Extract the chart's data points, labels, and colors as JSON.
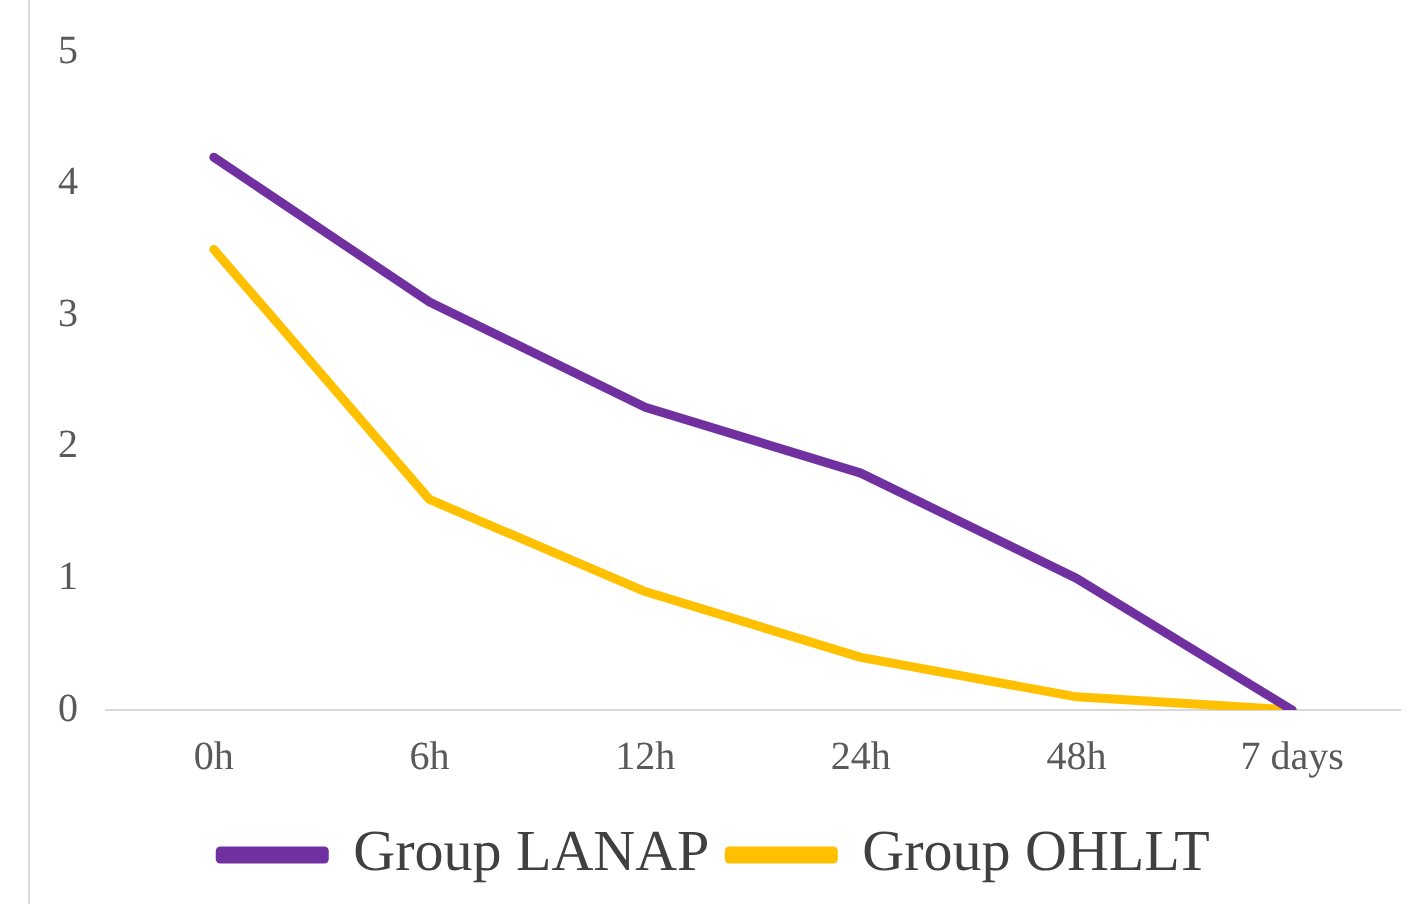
{
  "chart_data": {
    "type": "line",
    "categories": [
      "0h",
      "6h",
      "12h",
      "24h",
      "48h",
      "7 days"
    ],
    "series": [
      {
        "name": "Group LANAP",
        "color": "#7030a0",
        "values": [
          4.2,
          3.1,
          2.3,
          1.8,
          1.0,
          0
        ]
      },
      {
        "name": "Group OHLLT",
        "color": "#ffc000",
        "values": [
          3.5,
          1.6,
          0.9,
          0.4,
          0.1,
          0
        ]
      }
    ],
    "ylim": [
      0,
      5
    ],
    "yticks": [
      0,
      1,
      2,
      3,
      4,
      5
    ],
    "grid": false,
    "legend": "bottom",
    "marker": "none",
    "line_style": "solid"
  }
}
